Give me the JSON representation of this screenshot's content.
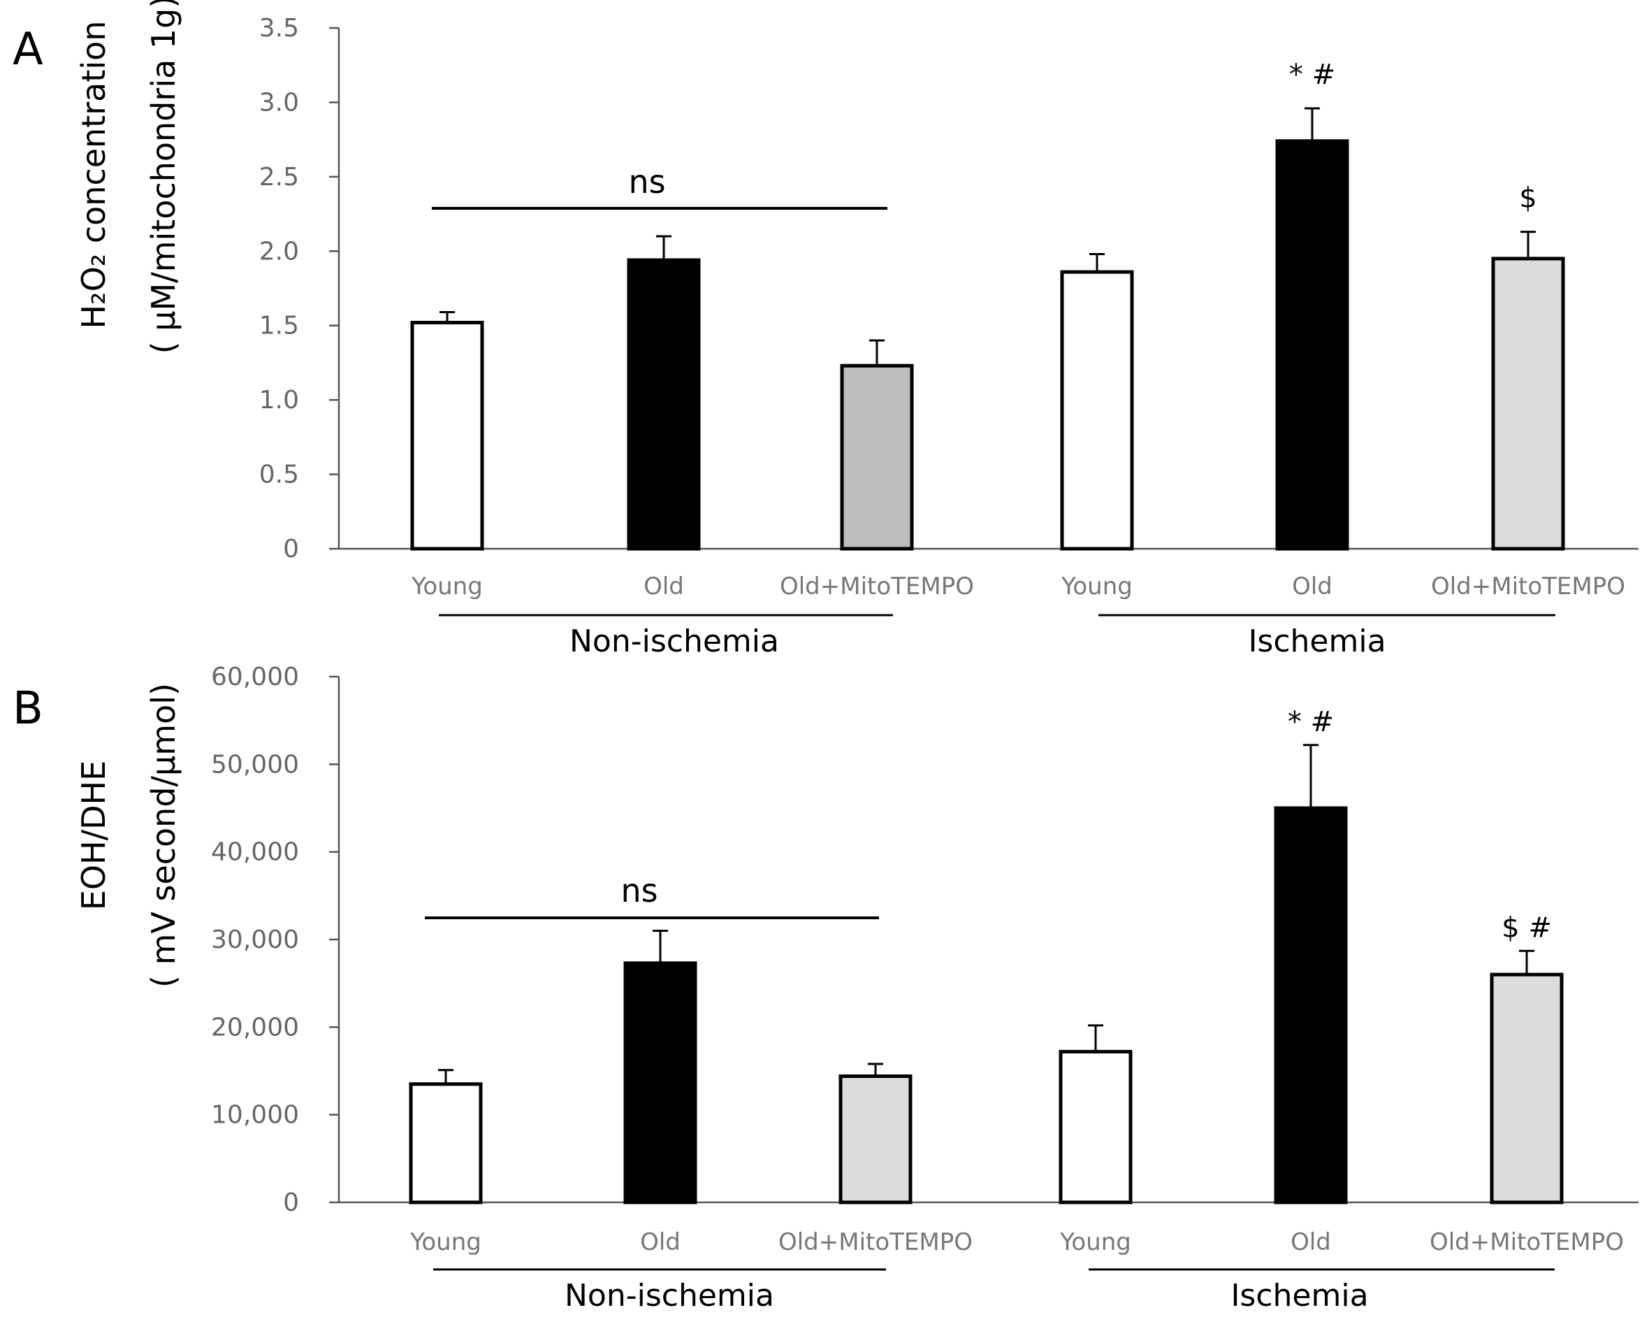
{
  "chart_data": [
    {
      "panel": "A",
      "type": "bar",
      "ylabel_line1": "H₂O₂ concentration",
      "ylabel_line2": "( µM/mitochondria 1g)",
      "ylim": [
        0,
        3.5
      ],
      "ytick_values": [
        0,
        0.5,
        1.0,
        1.5,
        2.0,
        2.5,
        3.0,
        3.5
      ],
      "ytick_labels": [
        "0",
        "0.5",
        "1.0",
        "1.5",
        "2.0",
        "2.5",
        "3.0",
        "3.5"
      ],
      "categories": [
        "Young",
        "Old",
        "Old+MitoTEMPO",
        "Young",
        "Old",
        "Old+MitoTEMPO"
      ],
      "groups": [
        {
          "label": "Non-ischemia",
          "bars": [
            0,
            1,
            2
          ]
        },
        {
          "label": "Ischemia",
          "bars": [
            3,
            4,
            5
          ]
        }
      ],
      "values": [
        1.52,
        1.94,
        1.23,
        1.86,
        2.74,
        1.95
      ],
      "errors": [
        0.07,
        0.16,
        0.17,
        0.12,
        0.22,
        0.18
      ],
      "fills": [
        "#ffffff",
        "#000000",
        "#bdbdbd",
        "#ffffff",
        "#000000",
        "#dcdcdc"
      ],
      "significance": [
        "",
        "",
        "",
        "",
        "* #",
        "$"
      ],
      "bracket_label": "ns"
    },
    {
      "panel": "B",
      "type": "bar",
      "ylabel_line1": "EOH/DHE",
      "ylabel_line2": "( mV second/µmol)",
      "ylim": [
        0,
        60000
      ],
      "ytick_values": [
        0,
        10000,
        20000,
        30000,
        40000,
        50000,
        60000
      ],
      "ytick_labels": [
        "0",
        "10,000",
        "20,000",
        "30,000",
        "40,000",
        "50,000",
        "60,000"
      ],
      "categories": [
        "Young",
        "Old",
        "Old+MitoTEMPO",
        "Young",
        "Old",
        "Old+MitoTEMPO"
      ],
      "groups": [
        {
          "label": "Non-ischemia",
          "bars": [
            0,
            1,
            2
          ]
        },
        {
          "label": "Ischemia",
          "bars": [
            3,
            4,
            5
          ]
        }
      ],
      "values": [
        13500,
        27300,
        14400,
        17200,
        45000,
        26000
      ],
      "errors": [
        1600,
        3700,
        1400,
        3000,
        7200,
        2700
      ],
      "fills": [
        "#ffffff",
        "#000000",
        "#dcdcdc",
        "#ffffff",
        "#000000",
        "#dcdcdc"
      ],
      "significance": [
        "",
        "",
        "",
        "",
        "* #",
        "$ #"
      ],
      "bracket_label": "ns"
    }
  ]
}
